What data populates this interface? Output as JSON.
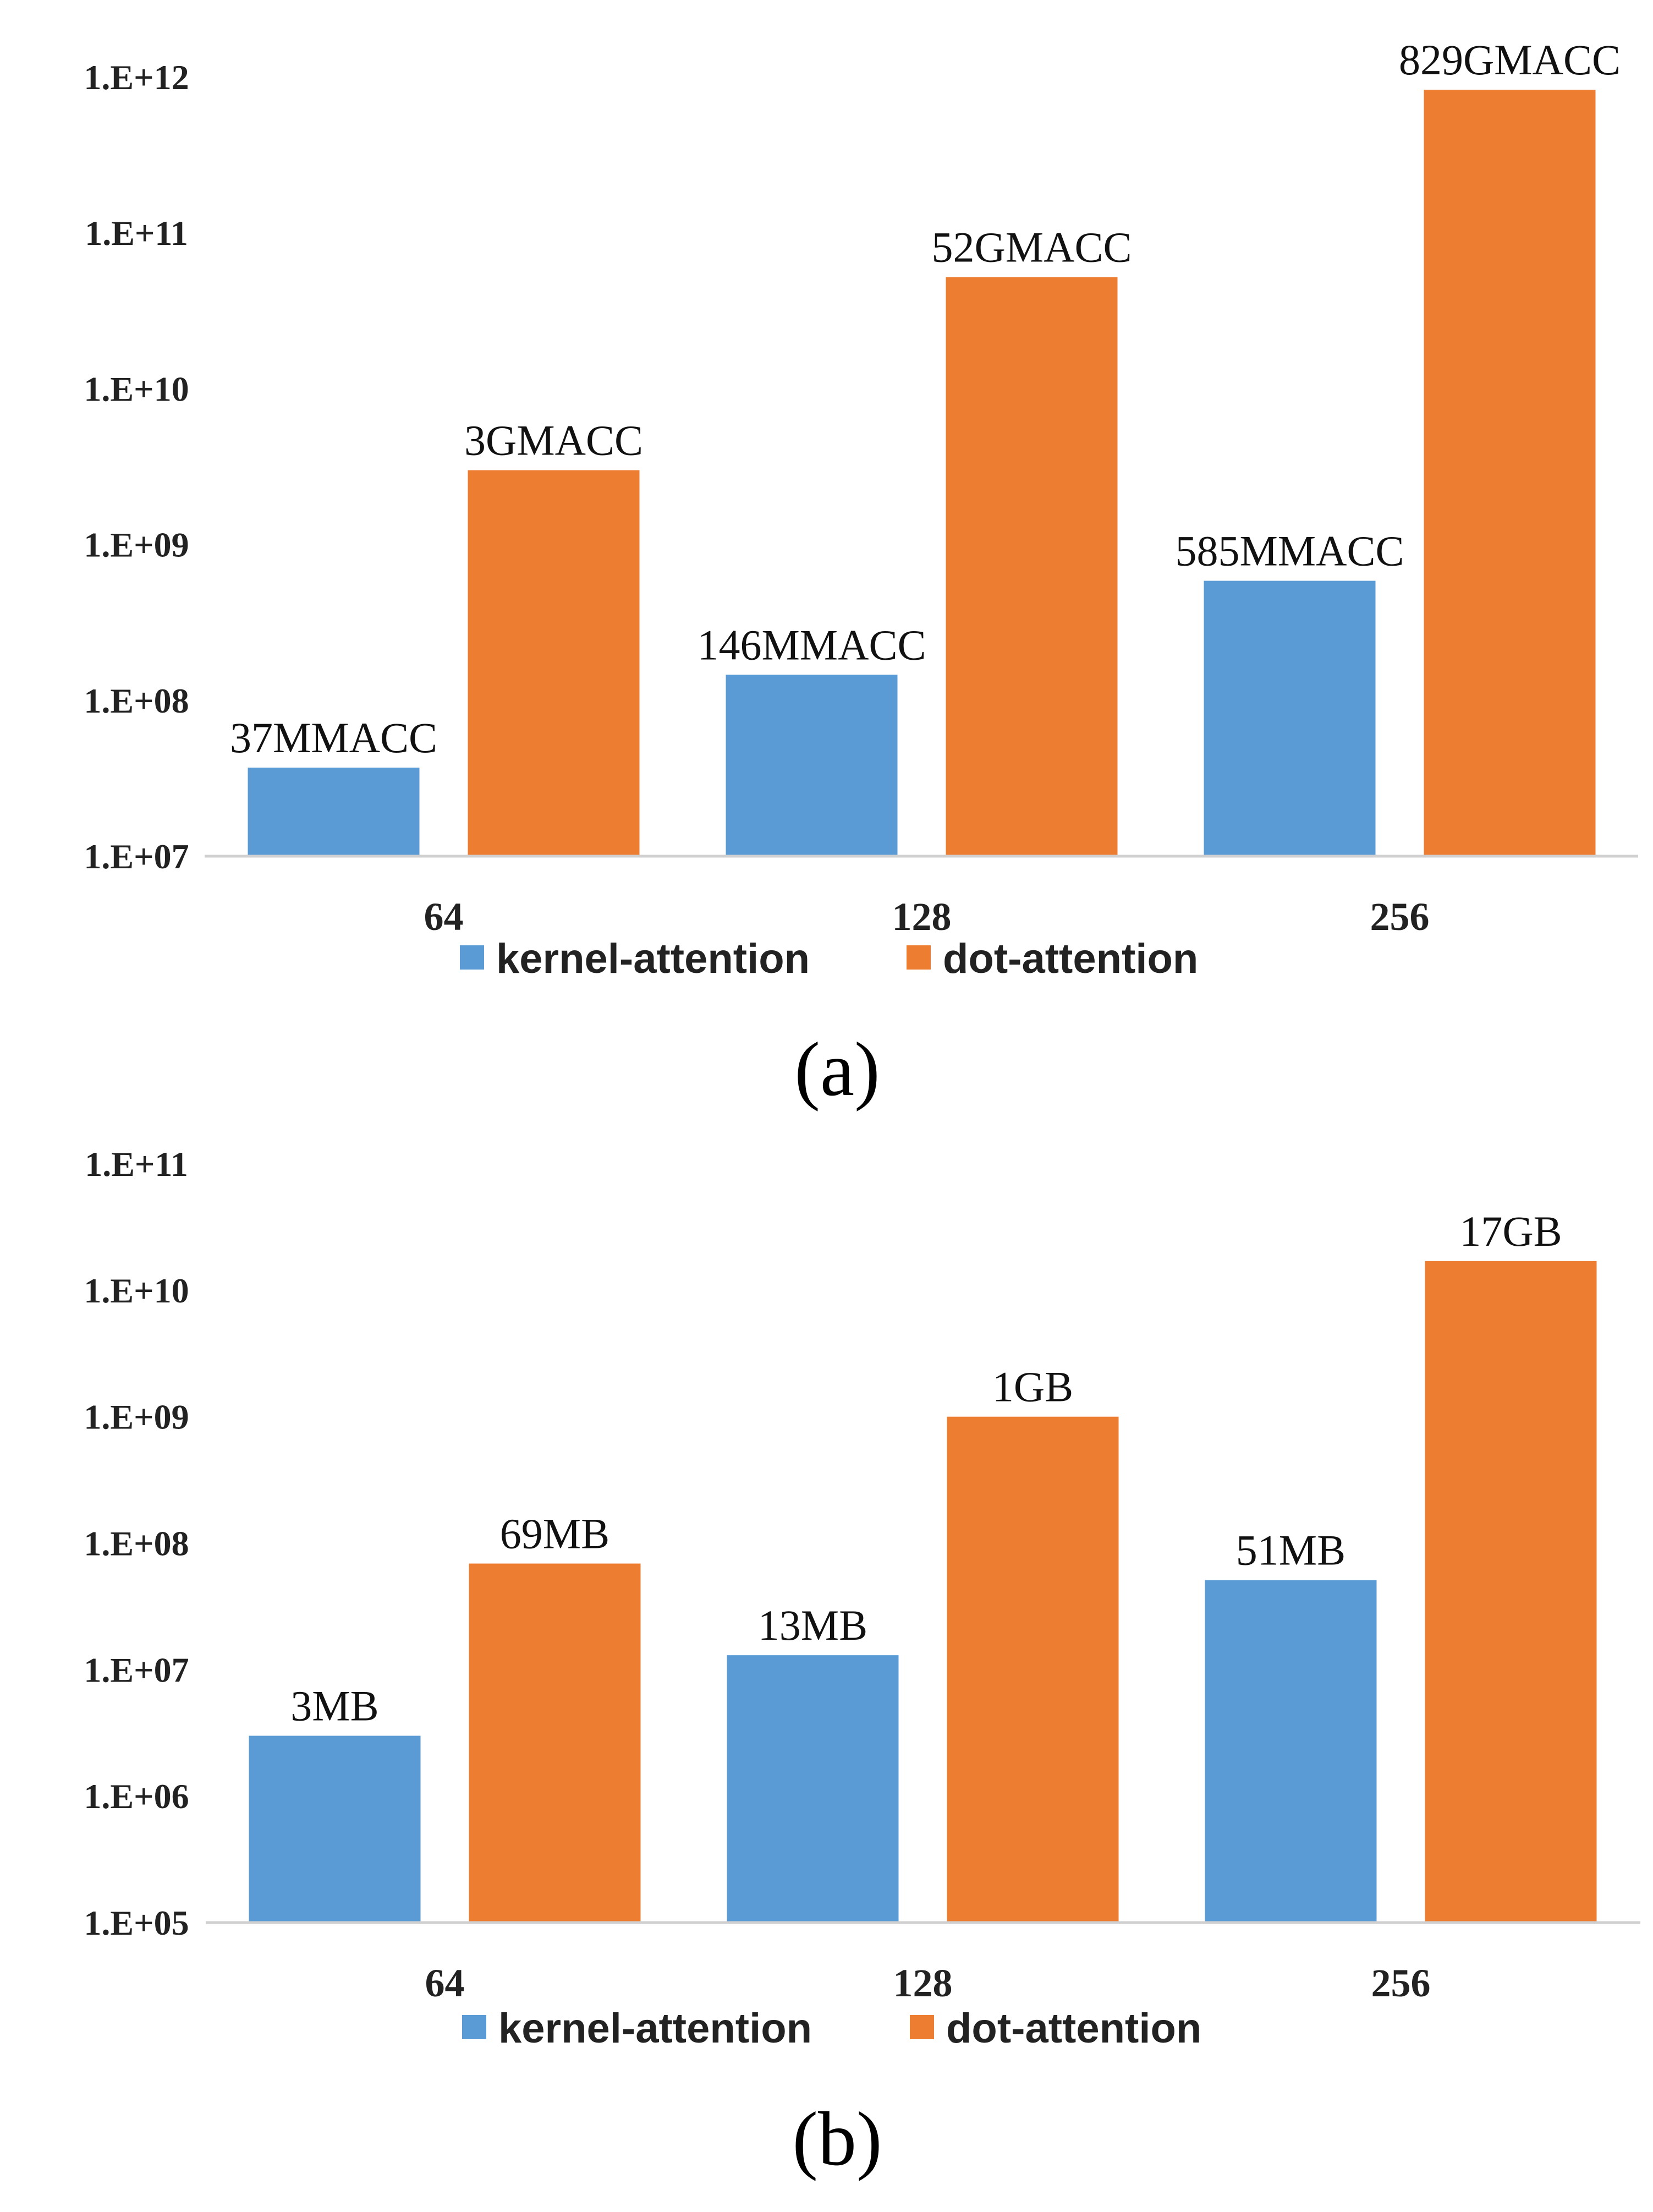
{
  "chart_data": [
    {
      "type": "bar",
      "caption": "(a)",
      "scale": "log10",
      "ylim": [
        10000000,
        1000000000000
      ],
      "yticks": [
        "1.E+07",
        "1.E+08",
        "1.E+09",
        "1.E+10",
        "1.E+11",
        "1.E+12"
      ],
      "categories": [
        "64",
        "128",
        "256"
      ],
      "series": [
        {
          "name": "kernel-attention",
          "color": "#5b9bd5",
          "values": [
            37000000,
            146000000,
            585000000
          ],
          "labels": [
            "37MMACC",
            "146MMACC",
            "585MMACC"
          ]
        },
        {
          "name": "dot-attention",
          "color": "#ed7d31",
          "values": [
            3000000000,
            52000000000,
            829000000000
          ],
          "labels": [
            "3GMACC",
            "52GMACC",
            "829GMACC"
          ]
        }
      ],
      "grid": false,
      "legend_position": "bottom"
    },
    {
      "type": "bar",
      "caption": "(b)",
      "scale": "log10",
      "ylim": [
        100000,
        100000000000
      ],
      "yticks": [
        "1.E+05",
        "1.E+06",
        "1.E+07",
        "1.E+08",
        "1.E+09",
        "1.E+10",
        "1.E+11"
      ],
      "categories": [
        "64",
        "128",
        "256"
      ],
      "series": [
        {
          "name": "kernel-attention",
          "color": "#5b9bd5",
          "values": [
            3000000,
            13000000,
            51000000
          ],
          "labels": [
            "3MB",
            "13MB",
            "51MB"
          ]
        },
        {
          "name": "dot-attention",
          "color": "#ed7d31",
          "values": [
            69000000,
            1000000000,
            17000000000
          ],
          "labels": [
            "69MB",
            "1GB",
            "17GB"
          ]
        }
      ],
      "grid": false,
      "legend_position": "bottom"
    }
  ]
}
